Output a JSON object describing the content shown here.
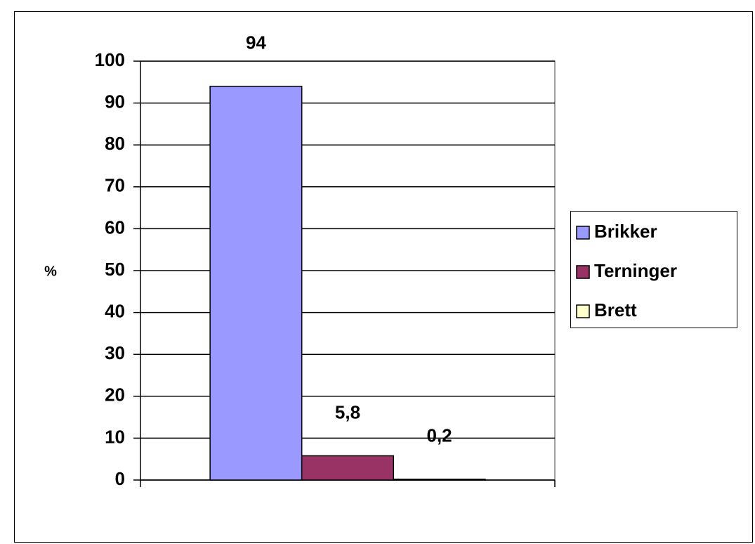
{
  "chart_data": {
    "type": "bar",
    "y_label": "%",
    "categories": [
      null
    ],
    "series": [
      {
        "name": "Brikker",
        "color": "#9999ff",
        "values": [
          94
        ],
        "value_labels": [
          "94"
        ]
      },
      {
        "name": "Terninger",
        "color": "#993366",
        "values": [
          5.8
        ],
        "value_labels": [
          "5,8"
        ]
      },
      {
        "name": "Brett",
        "color": "#ffffcc",
        "values": [
          0.2
        ],
        "value_labels": [
          "0,2"
        ]
      }
    ],
    "ylim": [
      0,
      100
    ],
    "yticks": [
      0,
      10,
      20,
      30,
      40,
      50,
      60,
      70,
      80,
      90,
      100
    ],
    "grid": true,
    "legend": "right"
  }
}
